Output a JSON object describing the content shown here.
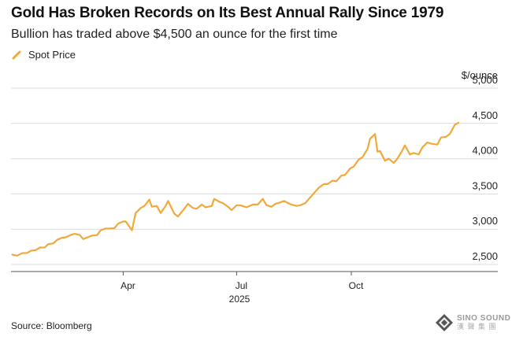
{
  "title": "Gold Has Broken Records on Its Best Annual Rally Since 1979",
  "subtitle": "Bullion has traded above $4,500 an ounce for the first time",
  "source": "Source: Bloomberg",
  "logo": {
    "line1": "SINO SOUND",
    "line2": "漢 聲 集 團"
  },
  "colors": {
    "series": "#f0a93a",
    "grid": "#dcdcdc",
    "text": "#222222"
  },
  "chart_data": {
    "type": "line",
    "ylabel": "$/ounce",
    "ylim": [
      2400,
      5000
    ],
    "yticks": [
      {
        "value": 2500,
        "label": "2,500"
      },
      {
        "value": 3000,
        "label": "3,000"
      },
      {
        "value": 3500,
        "label": "3,500"
      },
      {
        "value": 4000,
        "label": "4,000"
      },
      {
        "value": 4500,
        "label": "4,500"
      },
      {
        "value": 5000,
        "label": "5,000"
      }
    ],
    "xlim": [
      "2025-01-01",
      "2025-12-31"
    ],
    "xticks": [
      {
        "date": "2025-04-01",
        "label": "Apr"
      },
      {
        "date": "2025-07-01",
        "label": "Jul"
      },
      {
        "date": "2025-10-01",
        "label": "Oct"
      }
    ],
    "year_label": "2025",
    "grid": true,
    "legend": "top-left",
    "series": [
      {
        "name": "Spot Price",
        "points": [
          [
            "2025-01-02",
            2640
          ],
          [
            "2025-01-06",
            2625
          ],
          [
            "2025-01-10",
            2660
          ],
          [
            "2025-01-14",
            2665
          ],
          [
            "2025-01-17",
            2695
          ],
          [
            "2025-01-21",
            2705
          ],
          [
            "2025-01-24",
            2740
          ],
          [
            "2025-01-28",
            2740
          ],
          [
            "2025-01-31",
            2790
          ],
          [
            "2025-02-04",
            2800
          ],
          [
            "2025-02-07",
            2850
          ],
          [
            "2025-02-11",
            2880
          ],
          [
            "2025-02-14",
            2885
          ],
          [
            "2025-02-18",
            2920
          ],
          [
            "2025-02-21",
            2935
          ],
          [
            "2025-02-25",
            2920
          ],
          [
            "2025-02-28",
            2860
          ],
          [
            "2025-03-04",
            2890
          ],
          [
            "2025-03-07",
            2910
          ],
          [
            "2025-03-11",
            2915
          ],
          [
            "2025-03-14",
            2985
          ],
          [
            "2025-03-18",
            3010
          ],
          [
            "2025-03-21",
            3010
          ],
          [
            "2025-03-25",
            3015
          ],
          [
            "2025-03-28",
            3080
          ],
          [
            "2025-04-01",
            3110
          ],
          [
            "2025-04-03",
            3110
          ],
          [
            "2025-04-08",
            2985
          ],
          [
            "2025-04-11",
            3230
          ],
          [
            "2025-04-15",
            3300
          ],
          [
            "2025-04-18",
            3330
          ],
          [
            "2025-04-22",
            3420
          ],
          [
            "2025-04-24",
            3320
          ],
          [
            "2025-04-28",
            3330
          ],
          [
            "2025-05-01",
            3230
          ],
          [
            "2025-05-05",
            3330
          ],
          [
            "2025-05-07",
            3400
          ],
          [
            "2025-05-12",
            3220
          ],
          [
            "2025-05-15",
            3180
          ],
          [
            "2025-05-20",
            3290
          ],
          [
            "2025-05-23",
            3360
          ],
          [
            "2025-05-27",
            3300
          ],
          [
            "2025-05-30",
            3290
          ],
          [
            "2025-06-03",
            3350
          ],
          [
            "2025-06-06",
            3310
          ],
          [
            "2025-06-11",
            3330
          ],
          [
            "2025-06-13",
            3430
          ],
          [
            "2025-06-17",
            3390
          ],
          [
            "2025-06-20",
            3370
          ],
          [
            "2025-06-24",
            3320
          ],
          [
            "2025-06-27",
            3270
          ],
          [
            "2025-07-01",
            3340
          ],
          [
            "2025-07-04",
            3340
          ],
          [
            "2025-07-09",
            3310
          ],
          [
            "2025-07-14",
            3350
          ],
          [
            "2025-07-18",
            3350
          ],
          [
            "2025-07-22",
            3430
          ],
          [
            "2025-07-25",
            3340
          ],
          [
            "2025-07-29",
            3320
          ],
          [
            "2025-08-01",
            3360
          ],
          [
            "2025-08-05",
            3380
          ],
          [
            "2025-08-08",
            3400
          ],
          [
            "2025-08-13",
            3355
          ],
          [
            "2025-08-18",
            3330
          ],
          [
            "2025-08-21",
            3340
          ],
          [
            "2025-08-25",
            3370
          ],
          [
            "2025-08-29",
            3450
          ],
          [
            "2025-09-02",
            3530
          ],
          [
            "2025-09-05",
            3590
          ],
          [
            "2025-09-09",
            3640
          ],
          [
            "2025-09-12",
            3640
          ],
          [
            "2025-09-16",
            3690
          ],
          [
            "2025-09-19",
            3680
          ],
          [
            "2025-09-23",
            3760
          ],
          [
            "2025-09-26",
            3770
          ],
          [
            "2025-09-30",
            3860
          ],
          [
            "2025-10-03",
            3890
          ],
          [
            "2025-10-07",
            3990
          ],
          [
            "2025-10-10",
            4020
          ],
          [
            "2025-10-14",
            4140
          ],
          [
            "2025-10-16",
            4280
          ],
          [
            "2025-10-20",
            4350
          ],
          [
            "2025-10-22",
            4100
          ],
          [
            "2025-10-24",
            4110
          ],
          [
            "2025-10-28",
            3970
          ],
          [
            "2025-10-31",
            4000
          ],
          [
            "2025-11-04",
            3940
          ],
          [
            "2025-11-07",
            4000
          ],
          [
            "2025-11-11",
            4120
          ],
          [
            "2025-11-13",
            4190
          ],
          [
            "2025-11-17",
            4060
          ],
          [
            "2025-11-20",
            4080
          ],
          [
            "2025-11-24",
            4060
          ],
          [
            "2025-11-27",
            4160
          ],
          [
            "2025-12-01",
            4230
          ],
          [
            "2025-12-05",
            4210
          ],
          [
            "2025-12-09",
            4200
          ],
          [
            "2025-12-12",
            4300
          ],
          [
            "2025-12-16",
            4310
          ],
          [
            "2025-12-19",
            4350
          ],
          [
            "2025-12-23",
            4480
          ],
          [
            "2025-12-26",
            4510
          ]
        ]
      }
    ]
  }
}
